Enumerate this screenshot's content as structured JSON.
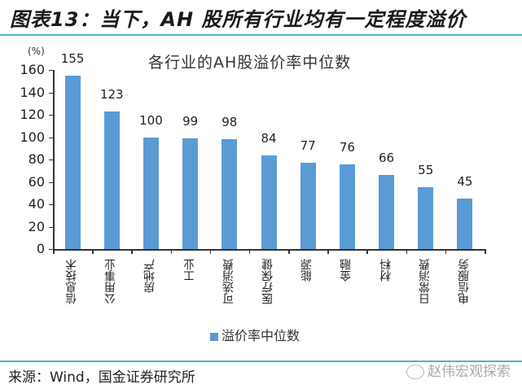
{
  "figure": {
    "title": "图表13：当下，AH 股所有行业均有一定程度溢价",
    "source": "来源：Wind，国金证券研究所",
    "watermark": "赵伟宏观探索"
  },
  "chart_data": {
    "type": "bar",
    "title": "各行业的AH股溢价率中位数",
    "unit_label": "(%)",
    "xlabel": "",
    "ylabel": "(%)",
    "ylim": [
      0,
      160
    ],
    "yticks": [
      0,
      20,
      40,
      60,
      80,
      100,
      120,
      140,
      160
    ],
    "grid": false,
    "legend_position": "bottom",
    "categories": [
      "信息技术",
      "公用事业",
      "房地产",
      "工业",
      "可选消费",
      "医疗保健",
      "能源",
      "金融",
      "材料",
      "日常消费",
      "电信服务"
    ],
    "series": [
      {
        "name": "溢价率中位数",
        "color": "#5b9bd5",
        "values": [
          155,
          123,
          100,
          99,
          98,
          84,
          77,
          76,
          66,
          55,
          45
        ]
      }
    ]
  }
}
